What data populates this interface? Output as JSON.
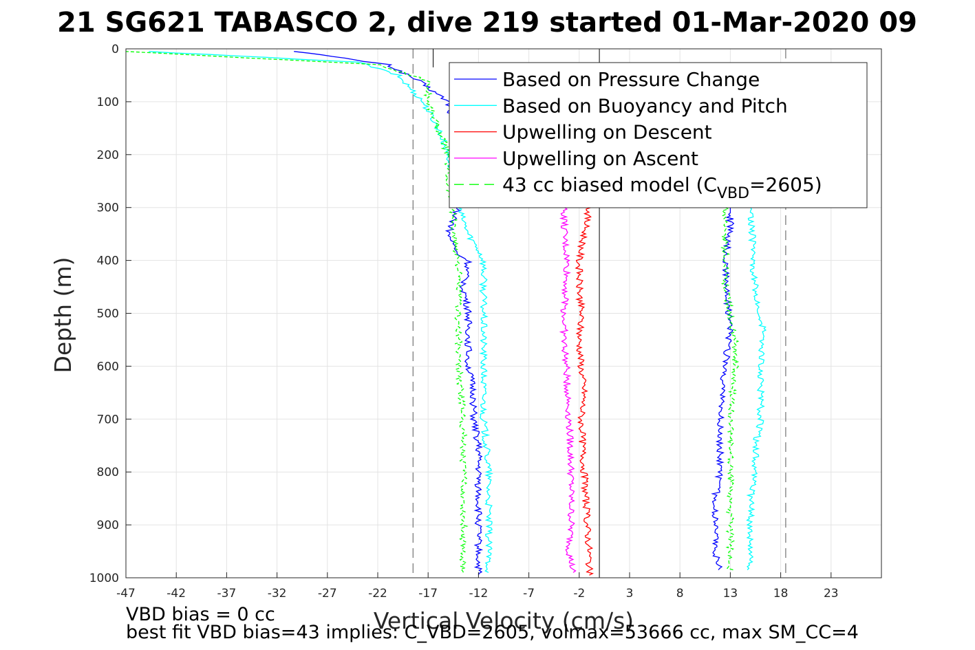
{
  "chart_data": {
    "type": "line",
    "title": "21 SG621 TABASCO 2, dive 219 started 01-Mar-2020 09",
    "xlabel": "Vertical Velocity (cm/s)",
    "ylabel": "Depth (m)",
    "xlim": [
      -47,
      28
    ],
    "ylim": [
      1000,
      0
    ],
    "y_reversed": true,
    "grid": true,
    "legend_placement": "top-right inside",
    "xticks": [
      -47,
      -42,
      -37,
      -32,
      -27,
      -22,
      -17,
      -12,
      -7,
      -2,
      3,
      8,
      13,
      18,
      23
    ],
    "xtick_labels": [
      "-47",
      "-42",
      "-37",
      "-32",
      "-27",
      "-22",
      "-17",
      "-12",
      "-7",
      "-2",
      "3",
      "8",
      "13",
      "18",
      "23"
    ],
    "yticks": [
      0,
      100,
      200,
      300,
      400,
      500,
      600,
      700,
      800,
      900,
      1000
    ],
    "ytick_labels": [
      "0",
      "100",
      "200",
      "300",
      "400",
      "500",
      "600",
      "700",
      "800",
      "900",
      "1000"
    ],
    "reference_lines": [
      {
        "x": 0,
        "style": "solid",
        "color": "#000000"
      },
      {
        "x": -18.5,
        "style": "dashed",
        "color": "#000000"
      },
      {
        "x": 18.5,
        "style": "dashed",
        "color": "#000000"
      },
      {
        "x": -16.5,
        "style": "solid",
        "color": "#000000",
        "ymax": 35
      }
    ],
    "legend": [
      {
        "label": "Based on Pressure Change",
        "color": "#0000ff",
        "dash": "solid"
      },
      {
        "label": "Based on Buoyancy and Pitch",
        "color": "#00ffff",
        "dash": "solid"
      },
      {
        "label": "Upwelling on Descent",
        "color": "#ff0000",
        "dash": "solid"
      },
      {
        "label": "Upwelling on Ascent",
        "color": "#ff00ff",
        "dash": "solid"
      },
      {
        "label_main": "43 cc biased model (C",
        "label_sub": "VBD",
        "label_end": "=2605)",
        "color": "#00ff00",
        "dash": "dashed"
      }
    ],
    "series": [
      {
        "name": "Based on Pressure Change",
        "color": "#0000ff",
        "dash": "solid",
        "x": [
          -30,
          -21,
          -18,
          -15,
          -14.5,
          -14,
          -13.5,
          -14,
          -15,
          -14,
          -13,
          -13.5,
          -13,
          -13,
          -12.5,
          -12.5,
          -12,
          -12,
          -12,
          -12,
          -12
        ],
        "y": [
          5,
          30,
          60,
          100,
          150,
          200,
          250,
          300,
          350,
          390,
          400,
          450,
          500,
          600,
          650,
          700,
          750,
          800,
          900,
          950,
          995
        ]
      },
      {
        "name": "Based on Buoyancy and Pitch",
        "color": "#00ffff",
        "dash": "solid",
        "x": [
          -45,
          -24,
          -20,
          -17.5,
          -16,
          -15,
          -14.5,
          -14,
          -13,
          -12,
          -11.5,
          -11.5,
          -11.5,
          -11.5,
          -11,
          -11,
          -11
        ],
        "y": [
          5,
          25,
          50,
          100,
          150,
          200,
          250,
          300,
          350,
          380,
          400,
          500,
          600,
          700,
          800,
          900,
          990
        ]
      },
      {
        "name": "Upwelling on Descent",
        "color": "#ff0000",
        "dash": "solid",
        "x": [
          -1,
          -1.5,
          -2,
          -2,
          -1.8,
          -2,
          -1.8,
          -1.5,
          -1.8,
          -1.5,
          -1.2,
          -1,
          -1
        ],
        "y": [
          300,
          350,
          400,
          450,
          500,
          550,
          600,
          650,
          700,
          800,
          900,
          950,
          995
        ]
      },
      {
        "name": "Upwelling on Ascent",
        "color": "#ff00ff",
        "dash": "solid",
        "x": [
          -3.5,
          -3.5,
          -3.2,
          -3.3,
          -3.5,
          -3.5,
          -3.3,
          -3,
          -2.8,
          -2.8,
          -3,
          -2.6
        ],
        "y": [
          300,
          350,
          400,
          450,
          500,
          550,
          600,
          700,
          800,
          900,
          950,
          990
        ]
      },
      {
        "name": "43 cc biased model (CVBD=2605)",
        "color": "#00ff00",
        "dash": "dashed",
        "x": [
          -47,
          -22,
          -17,
          -17,
          -16,
          -15,
          -15,
          -14.5,
          -14.5,
          -14,
          -14,
          -14,
          -13.5,
          -13.5,
          -13.5
        ],
        "y": [
          5,
          30,
          60,
          100,
          150,
          200,
          250,
          300,
          350,
          400,
          500,
          600,
          700,
          800,
          990
        ]
      },
      {
        "name": "Based on Pressure Change (ascent)",
        "color": "#0000ff",
        "dash": "solid",
        "x": [
          12,
          11.5,
          11.5,
          11.5,
          12,
          12,
          12.5,
          13,
          12.8,
          12.5,
          13,
          13,
          13,
          13
        ],
        "y": [
          985,
          950,
          900,
          850,
          800,
          700,
          600,
          520,
          500,
          400,
          330,
          310,
          300,
          300
        ]
      },
      {
        "name": "Based on Buoyancy and Pitch (ascent)",
        "color": "#00ffff",
        "dash": "solid",
        "x": [
          15,
          15,
          15,
          15.5,
          15.5,
          16,
          16,
          16.2,
          16,
          15.5,
          15.2,
          15.2,
          15
        ],
        "y": [
          985,
          900,
          850,
          800,
          750,
          700,
          600,
          520,
          500,
          450,
          400,
          350,
          300
        ]
      },
      {
        "name": "43 cc biased model (ascent)",
        "color": "#00ff00",
        "dash": "dashed",
        "x": [
          13,
          13,
          13,
          13,
          13.5,
          13.5,
          13,
          12.5,
          12.5,
          12.5
        ],
        "y": [
          985,
          900,
          800,
          700,
          600,
          550,
          500,
          450,
          400,
          300
        ]
      }
    ]
  },
  "notes": {
    "line1": "VBD bias = 0 cc",
    "line2": "best fit VBD bias=43 implies: C_VBD=2605, volmax=53666 cc, max SM_CC=4"
  }
}
